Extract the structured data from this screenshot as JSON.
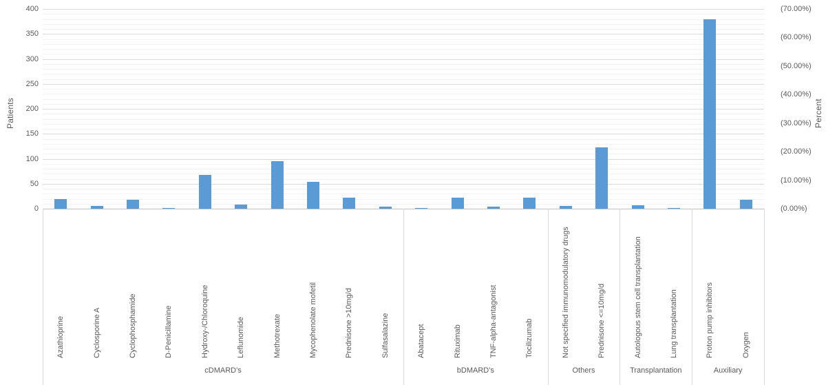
{
  "chart_data": {
    "type": "bar",
    "title": "",
    "bar_color": "#5b9bd5",
    "grid": "on",
    "legend": "none",
    "left_axis": {
      "label": "Patients",
      "min": 0,
      "max": 400,
      "major_step": 50,
      "minor_step": 10,
      "tick_labels": [
        "400",
        "350",
        "300",
        "250",
        "200",
        "150",
        "100",
        "50",
        "0"
      ]
    },
    "right_axis": {
      "label": "Percent",
      "min": 0,
      "max": 70,
      "major_step": 10,
      "tick_labels": [
        "(70.00%)",
        "(60.00%)",
        "(50.00%)",
        "(40.00%)",
        "(30.00%)",
        "(20.00%)",
        "(10.00%)",
        "(0.00%)"
      ]
    },
    "groups": [
      {
        "label": "cDMARD's",
        "items": [
          {
            "label": "Azathioprine",
            "value": 20
          },
          {
            "label": "Cyclosporine A",
            "value": 5
          },
          {
            "label": "Cyclophosphamide",
            "value": 18
          },
          {
            "label": "D-Penicillamine",
            "value": 1
          },
          {
            "label": "Hydroxy-/Chloroquine",
            "value": 67
          },
          {
            "label": "Leflunomide",
            "value": 9
          },
          {
            "label": "Methotrexate",
            "value": 95
          },
          {
            "label": "Mycophenolate mofetil",
            "value": 54
          },
          {
            "label": "Prednisone >10mg/d",
            "value": 22
          },
          {
            "label": "Sulfasalazine",
            "value": 4
          }
        ]
      },
      {
        "label": "bDMARD's",
        "items": [
          {
            "label": "Abatacept",
            "value": 2
          },
          {
            "label": "Rituximab",
            "value": 22
          },
          {
            "label": "TNF-alpha-antagonist",
            "value": 4
          },
          {
            "label": "Tocilizumab",
            "value": 22
          }
        ]
      },
      {
        "label": "Others",
        "items": [
          {
            "label": "Not specified immunomodulatory drugs",
            "value": 5
          },
          {
            "label": "Prednisone <=10mg/d",
            "value": 123
          }
        ]
      },
      {
        "label": "Transplantation",
        "items": [
          {
            "label": "Autologous stem cell transplantation",
            "value": 7
          },
          {
            "label": "Lung transplantation",
            "value": 2
          }
        ]
      },
      {
        "label": "Auxiliary",
        "items": [
          {
            "label": "Proton pump inhibitors",
            "value": 379
          },
          {
            "label": "Oxygen",
            "value": 18
          }
        ]
      }
    ]
  }
}
